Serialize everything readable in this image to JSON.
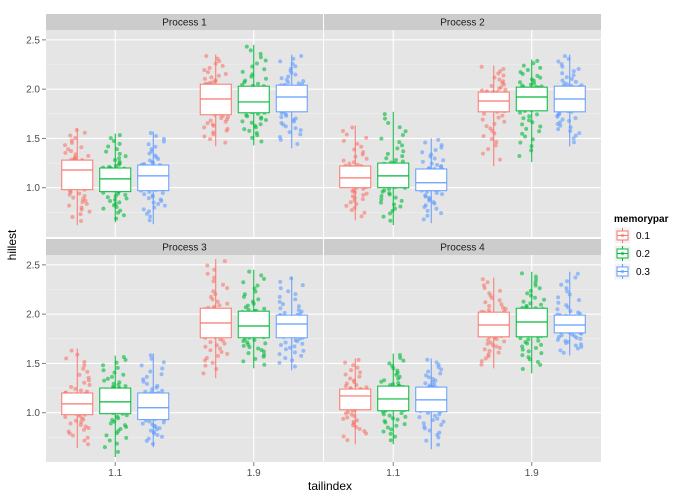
{
  "chart_data": {
    "type": "boxplot",
    "xlabel": "tailindex",
    "ylabel": "hillest",
    "categories": [
      "1.1",
      "1.9"
    ],
    "ylim": [
      0.5,
      2.6
    ],
    "y_ticks": [
      "1.0",
      "1.5",
      "2.0",
      "2.5"
    ],
    "y_tick_values": [
      1.0,
      1.5,
      2.0,
      2.5
    ],
    "grid": true,
    "legend": {
      "title": "memorypar",
      "placement": "right",
      "items": [
        {
          "label": "0.1",
          "color": "#F8766D"
        },
        {
          "label": "0.2",
          "color": "#00BA38"
        },
        {
          "label": "0.3",
          "color": "#619CFF"
        }
      ]
    },
    "panels": [
      {
        "title": "Process 1",
        "boxes": {
          "1.1": [
            {
              "group": "0.1",
              "min": 0.62,
              "q1": 0.98,
              "median": 1.18,
              "q3": 1.28,
              "max": 1.6
            },
            {
              "group": "0.2",
              "min": 0.65,
              "q1": 0.96,
              "median": 1.09,
              "q3": 1.2,
              "max": 1.55
            },
            {
              "group": "0.3",
              "min": 0.63,
              "q1": 0.97,
              "median": 1.12,
              "q3": 1.23,
              "max": 1.57
            }
          ],
          "1.9": [
            {
              "group": "0.1",
              "min": 1.42,
              "q1": 1.74,
              "median": 1.9,
              "q3": 2.05,
              "max": 2.35
            },
            {
              "group": "0.2",
              "min": 1.43,
              "q1": 1.76,
              "median": 1.87,
              "q3": 2.03,
              "max": 2.45
            },
            {
              "group": "0.3",
              "min": 1.4,
              "q1": 1.77,
              "median": 1.92,
              "q3": 2.04,
              "max": 2.35
            }
          ]
        }
      },
      {
        "title": "Process 2",
        "boxes": {
          "1.1": [
            {
              "group": "0.1",
              "min": 0.67,
              "q1": 1.0,
              "median": 1.1,
              "q3": 1.22,
              "max": 1.63
            },
            {
              "group": "0.2",
              "min": 0.62,
              "q1": 1.0,
              "median": 1.12,
              "q3": 1.25,
              "max": 1.77
            },
            {
              "group": "0.3",
              "min": 0.64,
              "q1": 0.97,
              "median": 1.05,
              "q3": 1.19,
              "max": 1.5
            }
          ],
          "1.9": [
            {
              "group": "0.1",
              "min": 1.22,
              "q1": 1.77,
              "median": 1.88,
              "q3": 1.97,
              "max": 2.24
            },
            {
              "group": "0.2",
              "min": 1.26,
              "q1": 1.78,
              "median": 1.92,
              "q3": 2.02,
              "max": 2.3
            },
            {
              "group": "0.3",
              "min": 1.42,
              "q1": 1.77,
              "median": 1.9,
              "q3": 2.03,
              "max": 2.35
            }
          ]
        }
      },
      {
        "title": "Process 3",
        "boxes": {
          "1.1": [
            {
              "group": "0.1",
              "min": 0.64,
              "q1": 0.98,
              "median": 1.09,
              "q3": 1.2,
              "max": 1.65
            },
            {
              "group": "0.2",
              "min": 0.55,
              "q1": 0.99,
              "median": 1.11,
              "q3": 1.25,
              "max": 1.58
            },
            {
              "group": "0.3",
              "min": 0.65,
              "q1": 0.93,
              "median": 1.05,
              "q3": 1.2,
              "max": 1.6
            }
          ],
          "1.9": [
            {
              "group": "0.1",
              "min": 1.35,
              "q1": 1.76,
              "median": 1.91,
              "q3": 2.06,
              "max": 2.56
            },
            {
              "group": "0.2",
              "min": 1.45,
              "q1": 1.76,
              "median": 1.88,
              "q3": 2.03,
              "max": 2.45
            },
            {
              "group": "0.3",
              "min": 1.43,
              "q1": 1.76,
              "median": 1.9,
              "q3": 1.99,
              "max": 2.38
            }
          ]
        }
      },
      {
        "title": "Process 4",
        "boxes": {
          "1.1": [
            {
              "group": "0.1",
              "min": 0.68,
              "q1": 1.03,
              "median": 1.17,
              "q3": 1.24,
              "max": 1.55
            },
            {
              "group": "0.2",
              "min": 0.68,
              "q1": 1.02,
              "median": 1.14,
              "q3": 1.27,
              "max": 1.6
            },
            {
              "group": "0.3",
              "min": 0.63,
              "q1": 1.01,
              "median": 1.13,
              "q3": 1.26,
              "max": 1.55
            }
          ],
          "1.9": [
            {
              "group": "0.1",
              "min": 1.45,
              "q1": 1.77,
              "median": 1.89,
              "q3": 2.02,
              "max": 2.37
            },
            {
              "group": "0.2",
              "min": 1.4,
              "q1": 1.77,
              "median": 1.92,
              "q3": 2.06,
              "max": 2.43
            },
            {
              "group": "0.3",
              "min": 1.58,
              "q1": 1.81,
              "median": 1.89,
              "q3": 1.99,
              "max": 2.43
            }
          ]
        }
      }
    ]
  }
}
